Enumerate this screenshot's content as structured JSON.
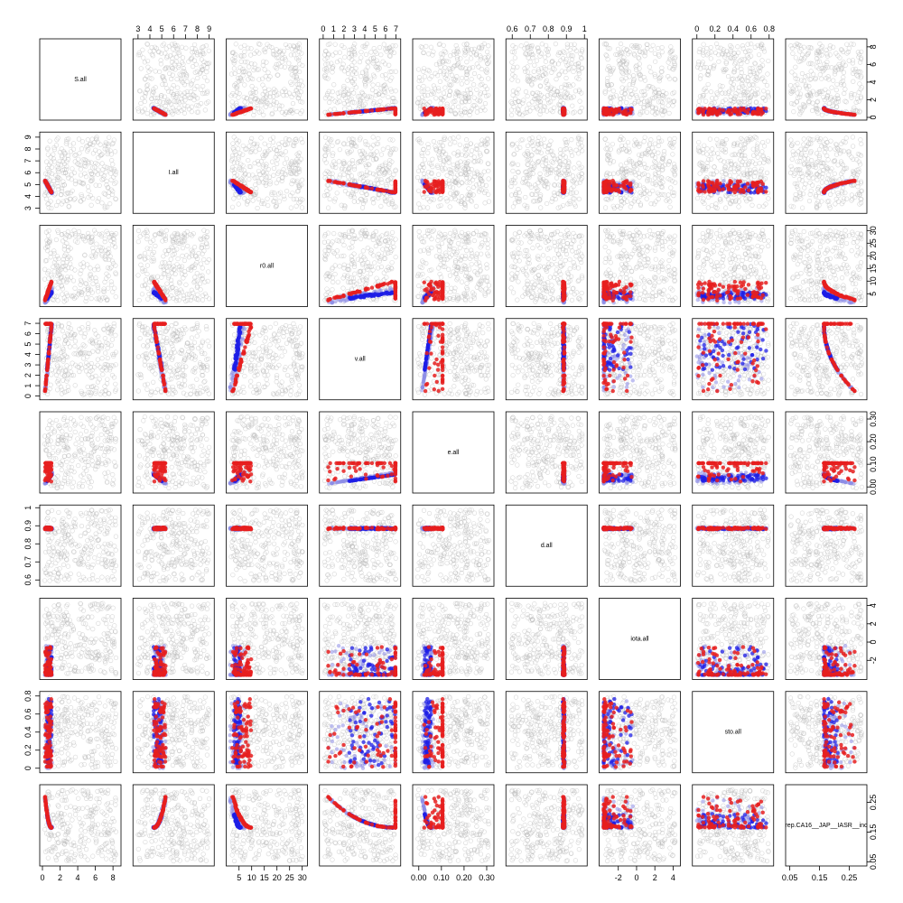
{
  "chart_data": {
    "type": "scatter",
    "subtype": "pairs-matrix",
    "title": "",
    "variables": [
      {
        "name": "S.all",
        "range": [
          0,
          8.6
        ],
        "ticks": [
          0,
          2,
          4,
          6,
          8
        ]
      },
      {
        "name": "I.all",
        "range": [
          2.8,
          9.2
        ],
        "ticks": [
          3,
          4,
          5,
          6,
          7,
          8,
          9
        ]
      },
      {
        "name": "r0.all",
        "range": [
          1,
          31
        ],
        "ticks": [
          5,
          10,
          15,
          20,
          25,
          30
        ]
      },
      {
        "name": "v.all",
        "range": [
          -0.1,
          7.2
        ],
        "ticks": [
          0,
          1,
          2,
          3,
          4,
          5,
          6,
          7
        ]
      },
      {
        "name": "e.all",
        "range": [
          -0.015,
          0.32
        ],
        "ticks": [
          0.0,
          0.1,
          0.2,
          0.3
        ],
        "tick_labels": [
          "0.00",
          "0.10",
          "0.20",
          "0.30"
        ]
      },
      {
        "name": "d.all",
        "range": [
          0.58,
          1.0
        ],
        "ticks": [
          0.6,
          0.7,
          0.8,
          0.9,
          1.0
        ]
      },
      {
        "name": "iota.all",
        "range": [
          -3.8,
          4.5
        ],
        "ticks": [
          -2,
          0,
          2,
          4
        ]
      },
      {
        "name": "sto.all",
        "range": [
          -0.02,
          0.82
        ],
        "ticks": [
          0.0,
          0.2,
          0.4,
          0.6,
          0.8
        ]
      },
      {
        "name": "rep.CA16__JAP__IASR__inc",
        "range": [
          0.045,
          0.3
        ],
        "ticks": [
          0.05,
          0.15,
          0.25
        ]
      }
    ],
    "top_axis_vars": [
      1,
      3,
      5,
      7
    ],
    "bottom_axis_vars": [
      0,
      2,
      4,
      6,
      8
    ],
    "left_axis_vars": [
      1,
      3,
      5,
      7
    ],
    "right_axis_vars": [
      0,
      2,
      4,
      6,
      8
    ],
    "series": [
      {
        "role": "prior",
        "color": "#b4b4b4",
        "style": "open-circle",
        "seed": 11,
        "count": 260
      },
      {
        "role": "posterior-faint",
        "color": "#8c8ce6",
        "style": "filled",
        "seed": 23
      },
      {
        "role": "posterior",
        "color": "#1e1ee6",
        "style": "filled",
        "seed": 37
      },
      {
        "role": "best-fit",
        "color": "#e61e1e",
        "style": "filled",
        "seed": 53
      }
    ],
    "legend": "none",
    "grid": false
  }
}
